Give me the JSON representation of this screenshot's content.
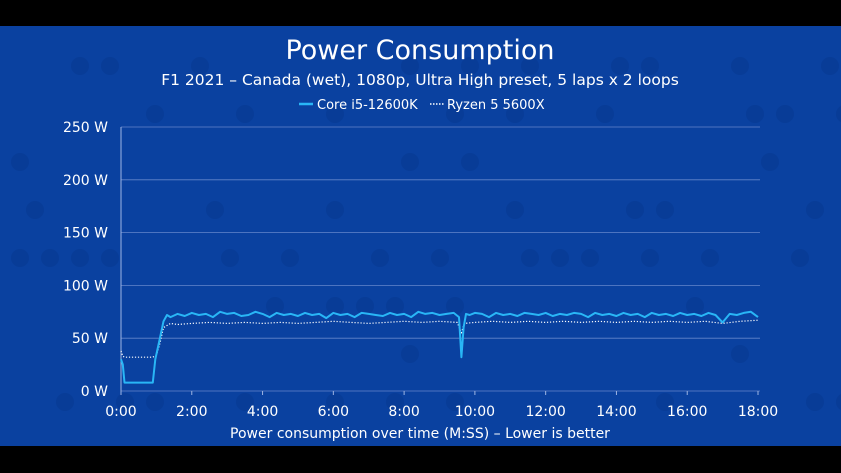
{
  "chart_data": {
    "type": "line",
    "title": "Power Consumption",
    "subtitle": "F1 2021 – Canada (wet), 1080p, Ultra High preset, 5 laps x 2 loops",
    "xlabel": "Power consumption over time (M:SS) – Lower is better",
    "ylabel": "",
    "ylim": [
      0,
      250
    ],
    "xlim": [
      0,
      18
    ],
    "y_ticks": [
      {
        "value": 0,
        "label": "0 W"
      },
      {
        "value": 50,
        "label": "50 W"
      },
      {
        "value": 100,
        "label": "100 W"
      },
      {
        "value": 150,
        "label": "150 W"
      },
      {
        "value": 200,
        "label": "200 W"
      },
      {
        "value": 250,
        "label": "250 W"
      }
    ],
    "x_ticks": [
      {
        "value": 0,
        "label": "0:00"
      },
      {
        "value": 2,
        "label": "2:00"
      },
      {
        "value": 4,
        "label": "4:00"
      },
      {
        "value": 6,
        "label": "6:00"
      },
      {
        "value": 8,
        "label": "8:00"
      },
      {
        "value": 10,
        "label": "10:00"
      },
      {
        "value": 12,
        "label": "12:00"
      },
      {
        "value": 14,
        "label": "14:00"
      },
      {
        "value": 16,
        "label": "16:00"
      },
      {
        "value": 18,
        "label": "18:00"
      }
    ],
    "grid": true,
    "legend_position": "top-center",
    "series": [
      {
        "name": "Core i5-12600K",
        "color": "#29b6f6",
        "style": "solid",
        "x": [
          0,
          0.05,
          0.1,
          0.3,
          0.6,
          0.9,
          0.97,
          1.1,
          1.2,
          1.3,
          1.4,
          1.6,
          1.8,
          2.0,
          2.2,
          2.4,
          2.6,
          2.8,
          3.0,
          3.2,
          3.4,
          3.6,
          3.8,
          4.0,
          4.2,
          4.4,
          4.6,
          4.8,
          5.0,
          5.2,
          5.4,
          5.6,
          5.8,
          6.0,
          6.2,
          6.4,
          6.6,
          6.8,
          7.0,
          7.2,
          7.4,
          7.6,
          7.8,
          8.0,
          8.2,
          8.4,
          8.6,
          8.8,
          9.0,
          9.2,
          9.4,
          9.55,
          9.62,
          9.68,
          9.75,
          9.85,
          10.0,
          10.2,
          10.4,
          10.6,
          10.8,
          11.0,
          11.2,
          11.4,
          11.6,
          11.8,
          12.0,
          12.2,
          12.4,
          12.6,
          12.8,
          13.0,
          13.2,
          13.4,
          13.6,
          13.8,
          14.0,
          14.2,
          14.4,
          14.6,
          14.8,
          15.0,
          15.2,
          15.4,
          15.6,
          15.8,
          16.0,
          16.2,
          16.4,
          16.6,
          16.8,
          17.0,
          17.2,
          17.4,
          17.6,
          17.8,
          18.0
        ],
        "values": [
          30,
          25,
          8,
          8,
          8,
          8,
          30,
          50,
          66,
          72,
          70,
          73,
          71,
          74,
          72,
          73,
          70,
          75,
          73,
          74,
          71,
          72,
          75,
          73,
          70,
          74,
          72,
          73,
          71,
          74,
          72,
          73,
          69,
          74,
          72,
          73,
          70,
          74,
          73,
          72,
          71,
          74,
          72,
          73,
          70,
          75,
          73,
          74,
          72,
          73,
          74,
          70,
          32,
          60,
          73,
          72,
          74,
          73,
          70,
          74,
          72,
          73,
          71,
          74,
          73,
          72,
          74,
          71,
          73,
          72,
          74,
          73,
          70,
          74,
          72,
          73,
          71,
          74,
          72,
          73,
          70,
          74,
          72,
          73,
          71,
          74,
          72,
          73,
          71,
          74,
          72,
          65,
          73,
          72,
          74,
          75,
          70
        ]
      },
      {
        "name": "Ryzen 5 5600X",
        "color": "#ffffff",
        "style": "dotted",
        "x": [
          0,
          0.05,
          0.1,
          0.3,
          0.6,
          0.9,
          1.0,
          1.1,
          1.2,
          1.4,
          1.6,
          2.0,
          2.5,
          3.0,
          3.5,
          4.0,
          4.5,
          5.0,
          5.5,
          6.0,
          6.5,
          7.0,
          7.5,
          8.0,
          8.5,
          9.0,
          9.5,
          9.62,
          9.7,
          10.0,
          10.5,
          11.0,
          11.5,
          12.0,
          12.5,
          13.0,
          13.5,
          14.0,
          14.5,
          15.0,
          15.5,
          16.0,
          16.5,
          17.0,
          17.5,
          18.0
        ],
        "values": [
          38,
          33,
          32,
          32,
          32,
          32,
          34,
          45,
          60,
          64,
          63,
          64,
          65,
          64,
          65,
          64,
          65,
          64,
          65,
          66,
          65,
          64,
          65,
          66,
          65,
          66,
          65,
          55,
          64,
          65,
          66,
          65,
          66,
          65,
          66,
          65,
          66,
          65,
          66,
          65,
          66,
          65,
          66,
          64,
          66,
          67
        ]
      }
    ]
  },
  "colors": {
    "background": "#0a41a0",
    "frame": "#000000",
    "text": "#ffffff",
    "grid": "#6f8fd0"
  }
}
